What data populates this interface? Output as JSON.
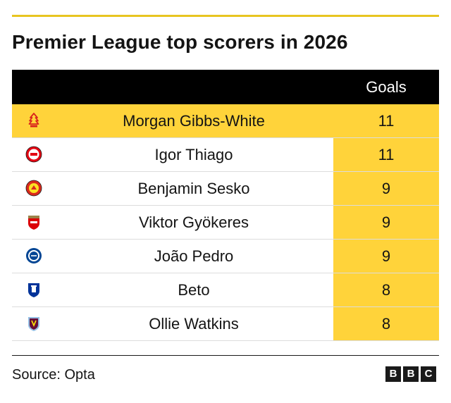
{
  "title": "Premier League top scorers in 2026",
  "colors": {
    "highlight": "#ffd33a",
    "header_bg": "#000000",
    "rule": "#e8c520"
  },
  "chart_data": {
    "type": "table",
    "title": "Premier League top scorers in 2026",
    "columns": [
      "",
      "",
      "Goals"
    ],
    "rows": [
      {
        "club_badge": "nottingham-forest-badge-icon",
        "player": "Morgan Gibbs-White",
        "goals": 11
      },
      {
        "club_badge": "brentford-badge-icon",
        "player": "Igor Thiago",
        "goals": 11
      },
      {
        "club_badge": "manchester-united-badge-icon",
        "player": "Benjamin Sesko",
        "goals": 9
      },
      {
        "club_badge": "arsenal-badge-icon",
        "player": "Viktor Gyökeres",
        "goals": 9
      },
      {
        "club_badge": "chelsea-badge-icon",
        "player": "João Pedro",
        "goals": 9
      },
      {
        "club_badge": "everton-badge-icon",
        "player": "Beto",
        "goals": 8
      },
      {
        "club_badge": "aston-villa-badge-icon",
        "player": "Ollie Watkins",
        "goals": 8
      }
    ]
  },
  "source": "Source: Opta",
  "logo_letters": [
    "B",
    "B",
    "C"
  ]
}
